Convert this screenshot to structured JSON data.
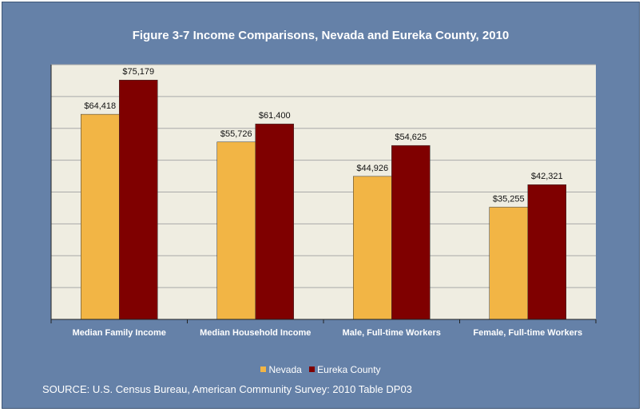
{
  "chart_data": {
    "type": "bar",
    "title": "Figure 3-7 Income Comparisons, Nevada and Eureka County, 2010",
    "categories": [
      "Median Family Income",
      "Median Household Income",
      "Male, Full-time Workers",
      "Female, Full-time Workers"
    ],
    "series": [
      {
        "name": "Nevada",
        "color": "#f2b545",
        "values": [
          64418,
          55726,
          44926,
          35255
        ],
        "labels": [
          "$64,418",
          "$55,726",
          "$44,926",
          "$35,255"
        ]
      },
      {
        "name": "Eureka County",
        "color": "#7f0000",
        "values": [
          75179,
          61400,
          54625,
          42321
        ],
        "labels": [
          "$75,179",
          "$61,400",
          "$54,625",
          "$42,321"
        ]
      }
    ],
    "ylim": [
      0,
      80000
    ],
    "y_gridline_step": 10000,
    "grid": true,
    "legend": "bottom-center",
    "plot_background": "#efede1",
    "frame_background": "#6581a8"
  },
  "source": "SOURCE: U.S. Census Bureau, American Community Survey: 2010 Table DP03"
}
